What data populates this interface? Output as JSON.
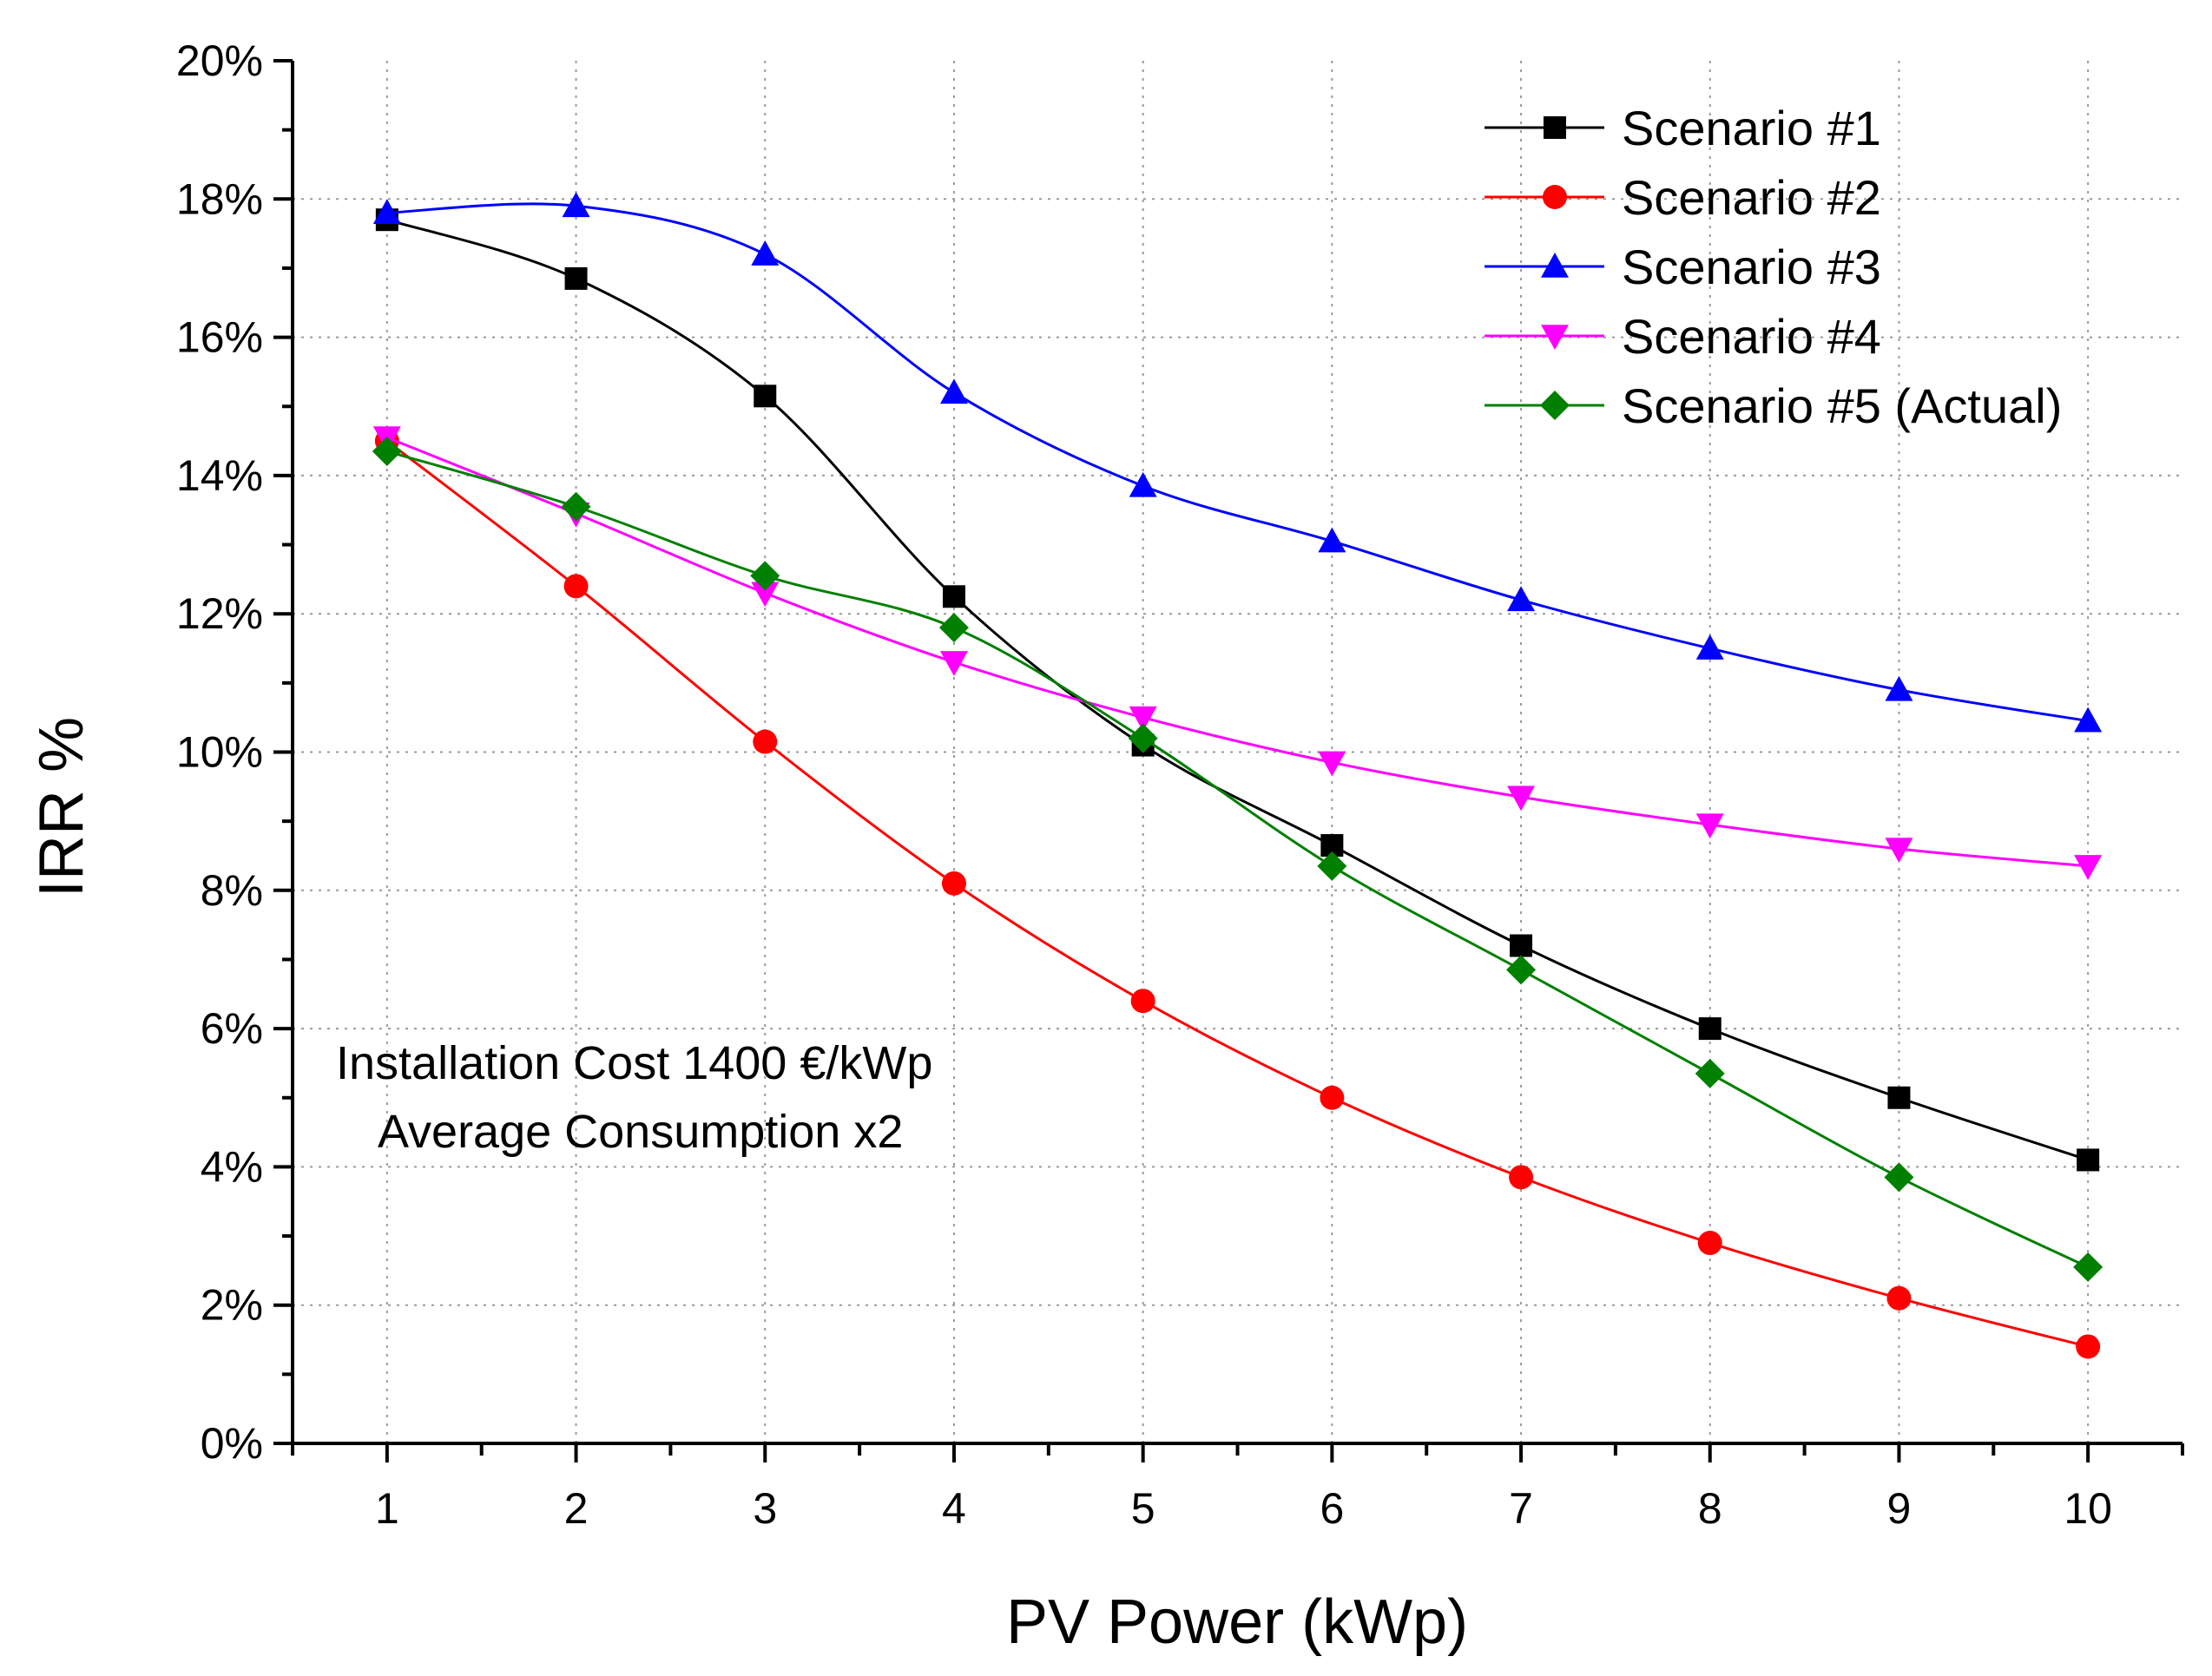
{
  "chart_data": {
    "type": "line",
    "title": "",
    "xlabel": "PV Power (kWp)",
    "ylabel": "IRR %",
    "x": [
      1,
      2,
      3,
      4,
      5,
      6,
      7,
      8,
      9,
      10
    ],
    "xlim": [
      0.5,
      10.5
    ],
    "ylim": [
      0,
      20
    ],
    "x_ticks": [
      "1",
      "2",
      "3",
      "4",
      "5",
      "6",
      "7",
      "8",
      "9",
      "10"
    ],
    "y_ticks": [
      "0%",
      "2%",
      "4%",
      "6%",
      "8%",
      "10%",
      "12%",
      "14%",
      "16%",
      "18%",
      "20%"
    ],
    "grid": true,
    "legend_position": "top-right",
    "series": [
      {
        "name": "Scenario #1",
        "color": "#000000",
        "marker": "square",
        "values": [
          17.7,
          16.85,
          15.15,
          12.25,
          10.1,
          8.65,
          7.2,
          6.0,
          5.0,
          4.1
        ]
      },
      {
        "name": "Scenario #2",
        "color": "#ff0000",
        "marker": "circle",
        "values": [
          14.5,
          12.4,
          10.15,
          8.1,
          6.4,
          5.0,
          3.85,
          2.9,
          2.1,
          1.4
        ]
      },
      {
        "name": "Scenario #3",
        "color": "#0000ff",
        "marker": "triangle-up",
        "values": [
          17.8,
          17.9,
          17.2,
          15.2,
          13.85,
          13.05,
          12.2,
          11.5,
          10.9,
          10.45
        ]
      },
      {
        "name": "Scenario #4",
        "color": "#ff00ff",
        "marker": "triangle-down",
        "values": [
          14.55,
          13.45,
          12.3,
          11.3,
          10.5,
          9.85,
          9.35,
          8.95,
          8.6,
          8.35
        ]
      },
      {
        "name": "Scenario #5 (Actual)",
        "color": "#008000",
        "marker": "diamond",
        "values": [
          14.35,
          13.55,
          12.55,
          11.8,
          10.2,
          8.35,
          6.85,
          5.35,
          3.85,
          2.55
        ]
      }
    ],
    "annotations": [
      "Installation Cost 1400 €/kWp",
      "Average Consumption x2"
    ]
  }
}
